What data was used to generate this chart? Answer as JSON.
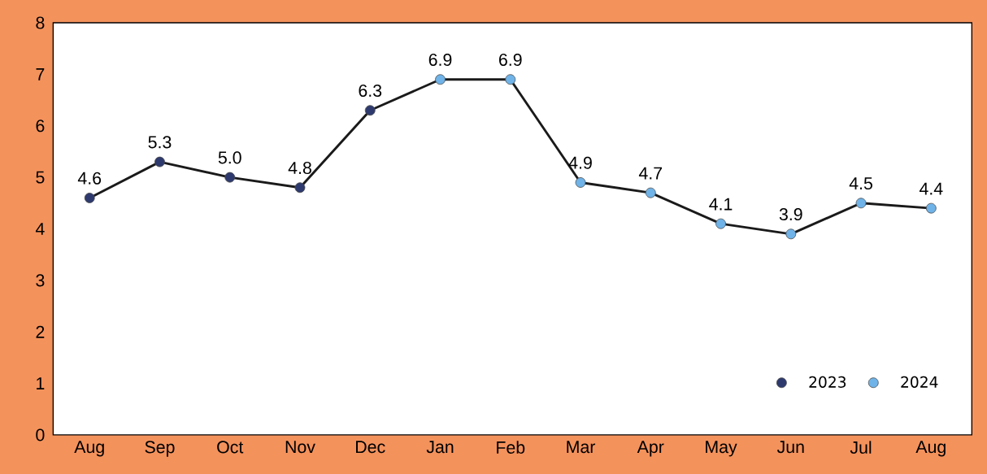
{
  "chart_data": {
    "type": "line",
    "categories": [
      "Aug",
      "Sep",
      "Oct",
      "Nov",
      "Dec",
      "Jan",
      "Feb",
      "Mar",
      "Apr",
      "May",
      "Jun",
      "Jul",
      "Aug"
    ],
    "series": [
      {
        "color": "#1a1a1a",
        "values": [
          4.6,
          5.3,
          5.0,
          4.8,
          6.3,
          6.9,
          6.9,
          4.9,
          4.7,
          4.1,
          3.9,
          4.5,
          4.4
        ],
        "value_labels": [
          "4.6",
          "5.3",
          "5.0",
          "4.8",
          "6.3",
          "6.9",
          "6.9",
          "4.9",
          "4.7",
          "4.1",
          "3.9",
          "4.5",
          "4.4"
        ]
      },
      {
        "type": "scatter",
        "name": "2023",
        "color": "#2e3a6e",
        "marker": "circle",
        "values": [
          4.6,
          5.3,
          5.0,
          4.8,
          6.3,
          null,
          null,
          null,
          null,
          null,
          null,
          null,
          null
        ]
      },
      {
        "type": "scatter",
        "name": "2024",
        "color": "#6fb3e8",
        "marker": "circle",
        "values": [
          null,
          null,
          null,
          null,
          null,
          6.9,
          6.9,
          4.9,
          4.7,
          4.1,
          3.9,
          4.5,
          4.4
        ]
      }
    ],
    "ylim": [
      0,
      8
    ],
    "yticks": [
      0,
      1,
      2,
      3,
      4,
      5,
      6,
      7,
      8
    ],
    "legend": "bottom right"
  }
}
